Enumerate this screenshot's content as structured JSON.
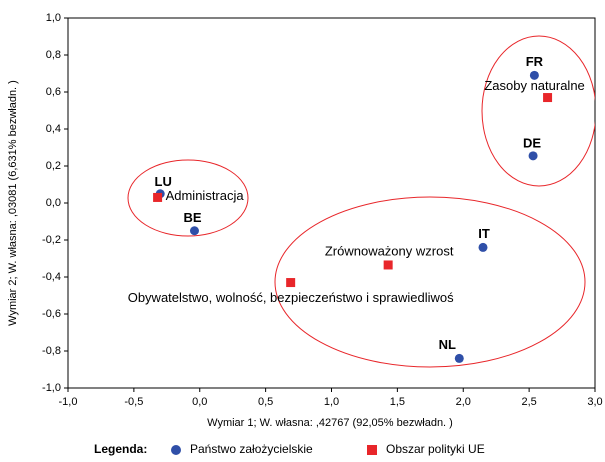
{
  "chart_data": {
    "type": "scatter",
    "x_label": "Wymiar    1; W. własna:  ,42767 (92,05% bezwładn. )",
    "y_label": "Wymiar    2; W. własna:  ,03081 (6,631% bezwładn. )",
    "legend_title": "Legenda:",
    "xlim": [
      -1.0,
      3.0
    ],
    "ylim": [
      -1.0,
      1.0
    ],
    "xticks": [
      {
        "value": -1.0,
        "label": "-1,0"
      },
      {
        "value": -0.5,
        "label": "-0,5"
      },
      {
        "value": 0.0,
        "label": "0,0"
      },
      {
        "value": 0.5,
        "label": "0,5"
      },
      {
        "value": 1.0,
        "label": "1,0"
      },
      {
        "value": 1.5,
        "label": "1,5"
      },
      {
        "value": 2.0,
        "label": "2,0"
      },
      {
        "value": 2.5,
        "label": "2,5"
      },
      {
        "value": 3.0,
        "label": "3,0"
      }
    ],
    "yticks": [
      {
        "value": 1.0,
        "label": "1,0"
      },
      {
        "value": 0.8,
        "label": "0,8"
      },
      {
        "value": 0.6,
        "label": "0,6"
      },
      {
        "value": 0.4,
        "label": "0,4"
      },
      {
        "value": 0.2,
        "label": "0,2"
      },
      {
        "value": 0.0,
        "label": "0,0"
      },
      {
        "value": -0.2,
        "label": "-0,2"
      },
      {
        "value": -0.4,
        "label": "-0,4"
      },
      {
        "value": -0.6,
        "label": "-0,6"
      },
      {
        "value": -0.8,
        "label": "-0,8"
      },
      {
        "value": -1.0,
        "label": "-1,0"
      }
    ],
    "series": [
      {
        "name": "Państwo założycielskie",
        "marker": "circle",
        "color": "#2f4fa8",
        "labels": [
          "FR",
          "DE",
          "IT",
          "NL",
          "BE",
          "LU"
        ],
        "x": [
          2.54,
          2.53,
          2.15,
          1.97,
          -0.04,
          -0.3
        ],
        "values": [
          0.69,
          0.255,
          -0.24,
          -0.84,
          -0.15,
          0.05
        ]
      },
      {
        "name": "Obszar polityki UE",
        "marker": "square",
        "color": "#e8262a",
        "labels": [
          "Zasoby naturalne",
          "Administracja",
          "Zrównoważony wzrost",
          "Obywatelstwo, wolność, bezpieczeństwo i sprawiedliwoś"
        ],
        "x": [
          2.64,
          -0.32,
          1.43,
          0.69
        ],
        "values": [
          0.57,
          0.03,
          -0.335,
          -0.43
        ]
      }
    ]
  }
}
